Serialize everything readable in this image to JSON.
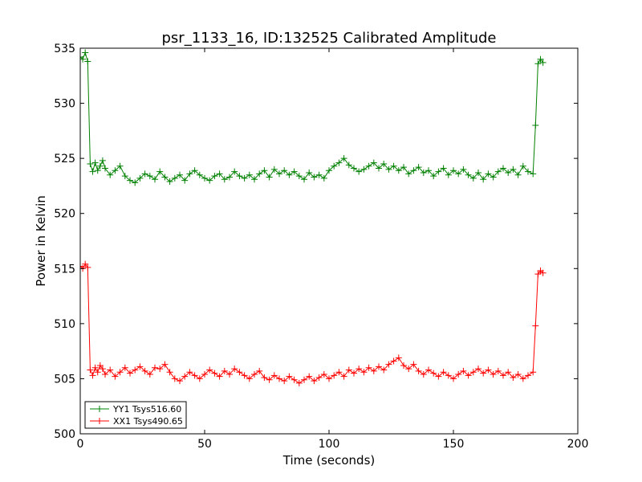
{
  "chart_data": {
    "type": "line",
    "title": "psr_1133_16, ID:132525 Calibrated Amplitude",
    "xlabel": "Time (seconds)",
    "ylabel": "Power in Kelvin",
    "xlim": [
      0,
      200
    ],
    "ylim": [
      500,
      535
    ],
    "xticks": [
      0,
      50,
      100,
      150,
      200
    ],
    "xtick_labels": [
      "0",
      "50",
      "100",
      "150",
      "200"
    ],
    "yticks": [
      500,
      505,
      510,
      515,
      520,
      525,
      530,
      535
    ],
    "ytick_labels": [
      "500",
      "505",
      "510",
      "515",
      "520",
      "525",
      "530",
      "535"
    ],
    "grid": false,
    "legend_position": "lower-left",
    "marker": "plus",
    "series": [
      {
        "name": "YY1 Tsys516.60",
        "color": "#008000",
        "x": [
          0,
          1,
          2,
          3,
          4,
          5,
          6,
          7,
          8,
          9,
          10,
          12,
          14,
          16,
          18,
          20,
          22,
          24,
          26,
          28,
          30,
          32,
          34,
          36,
          38,
          40,
          42,
          44,
          46,
          48,
          50,
          52,
          54,
          56,
          58,
          60,
          62,
          64,
          66,
          68,
          70,
          72,
          74,
          76,
          78,
          80,
          82,
          84,
          86,
          88,
          90,
          92,
          94,
          96,
          98,
          100,
          102,
          104,
          106,
          108,
          110,
          112,
          114,
          116,
          118,
          120,
          122,
          124,
          126,
          128,
          130,
          132,
          134,
          136,
          138,
          140,
          142,
          144,
          146,
          148,
          150,
          152,
          154,
          156,
          158,
          160,
          162,
          164,
          166,
          168,
          170,
          172,
          174,
          176,
          178,
          180,
          182,
          183,
          184,
          185,
          186
        ],
        "y": [
          534.2,
          534.0,
          534.6,
          533.8,
          524.5,
          523.8,
          524.6,
          523.9,
          524.3,
          524.8,
          524.1,
          523.5,
          523.9,
          524.3,
          523.4,
          523.0,
          522.8,
          523.2,
          523.6,
          523.4,
          523.1,
          523.8,
          523.3,
          522.9,
          523.2,
          523.5,
          523.0,
          523.6,
          523.9,
          523.5,
          523.2,
          523.0,
          523.4,
          523.6,
          523.1,
          523.3,
          523.8,
          523.4,
          523.2,
          523.5,
          523.1,
          523.6,
          523.9,
          523.3,
          524.0,
          523.6,
          523.9,
          523.5,
          523.8,
          523.4,
          523.1,
          523.7,
          523.3,
          523.5,
          523.2,
          523.9,
          524.3,
          524.6,
          525.0,
          524.4,
          524.1,
          523.8,
          524.0,
          524.3,
          524.6,
          524.1,
          524.5,
          524.0,
          524.3,
          523.9,
          524.2,
          523.6,
          523.9,
          524.2,
          523.7,
          523.9,
          523.4,
          523.8,
          524.1,
          523.5,
          523.9,
          523.6,
          524.0,
          523.5,
          523.2,
          523.7,
          523.1,
          523.6,
          523.3,
          523.8,
          524.1,
          523.7,
          524.0,
          523.5,
          524.3,
          523.8,
          523.6,
          528.0,
          533.6,
          534.0,
          533.7
        ]
      },
      {
        "name": "XX1 Tsys490.65",
        "color": "#ff0000",
        "x": [
          0,
          1,
          2,
          3,
          4,
          5,
          6,
          7,
          8,
          9,
          10,
          12,
          14,
          16,
          18,
          20,
          22,
          24,
          26,
          28,
          30,
          32,
          34,
          36,
          38,
          40,
          42,
          44,
          46,
          48,
          50,
          52,
          54,
          56,
          58,
          60,
          62,
          64,
          66,
          68,
          70,
          72,
          74,
          76,
          78,
          80,
          82,
          84,
          86,
          88,
          90,
          92,
          94,
          96,
          98,
          100,
          102,
          104,
          106,
          108,
          110,
          112,
          114,
          116,
          118,
          120,
          122,
          124,
          126,
          128,
          130,
          132,
          134,
          136,
          138,
          140,
          142,
          144,
          146,
          148,
          150,
          152,
          154,
          156,
          158,
          160,
          162,
          164,
          166,
          168,
          170,
          172,
          174,
          176,
          178,
          180,
          182,
          183,
          184,
          185,
          186
        ],
        "y": [
          515.2,
          515.0,
          515.4,
          515.1,
          505.8,
          505.3,
          506.0,
          505.6,
          506.2,
          505.9,
          505.4,
          505.8,
          505.2,
          505.6,
          506.0,
          505.5,
          505.8,
          506.1,
          505.7,
          505.4,
          506.0,
          505.9,
          506.3,
          505.6,
          505.0,
          504.8,
          505.2,
          505.6,
          505.3,
          505.0,
          505.4,
          505.8,
          505.5,
          505.2,
          505.7,
          505.4,
          505.9,
          505.6,
          505.3,
          505.0,
          505.4,
          505.7,
          505.1,
          504.9,
          505.3,
          505.0,
          504.8,
          505.2,
          504.9,
          504.6,
          504.9,
          505.2,
          504.8,
          505.1,
          505.4,
          505.0,
          505.3,
          505.6,
          505.2,
          505.8,
          505.5,
          505.9,
          505.6,
          506.0,
          505.7,
          506.1,
          505.8,
          506.3,
          506.6,
          506.9,
          506.2,
          505.9,
          506.3,
          505.7,
          505.4,
          505.8,
          505.5,
          505.2,
          505.6,
          505.3,
          505.0,
          505.4,
          505.7,
          505.3,
          505.6,
          505.9,
          505.5,
          505.8,
          505.4,
          505.7,
          505.3,
          505.6,
          505.1,
          505.4,
          505.0,
          505.3,
          505.6,
          509.8,
          514.5,
          514.8,
          514.6
        ]
      }
    ]
  }
}
